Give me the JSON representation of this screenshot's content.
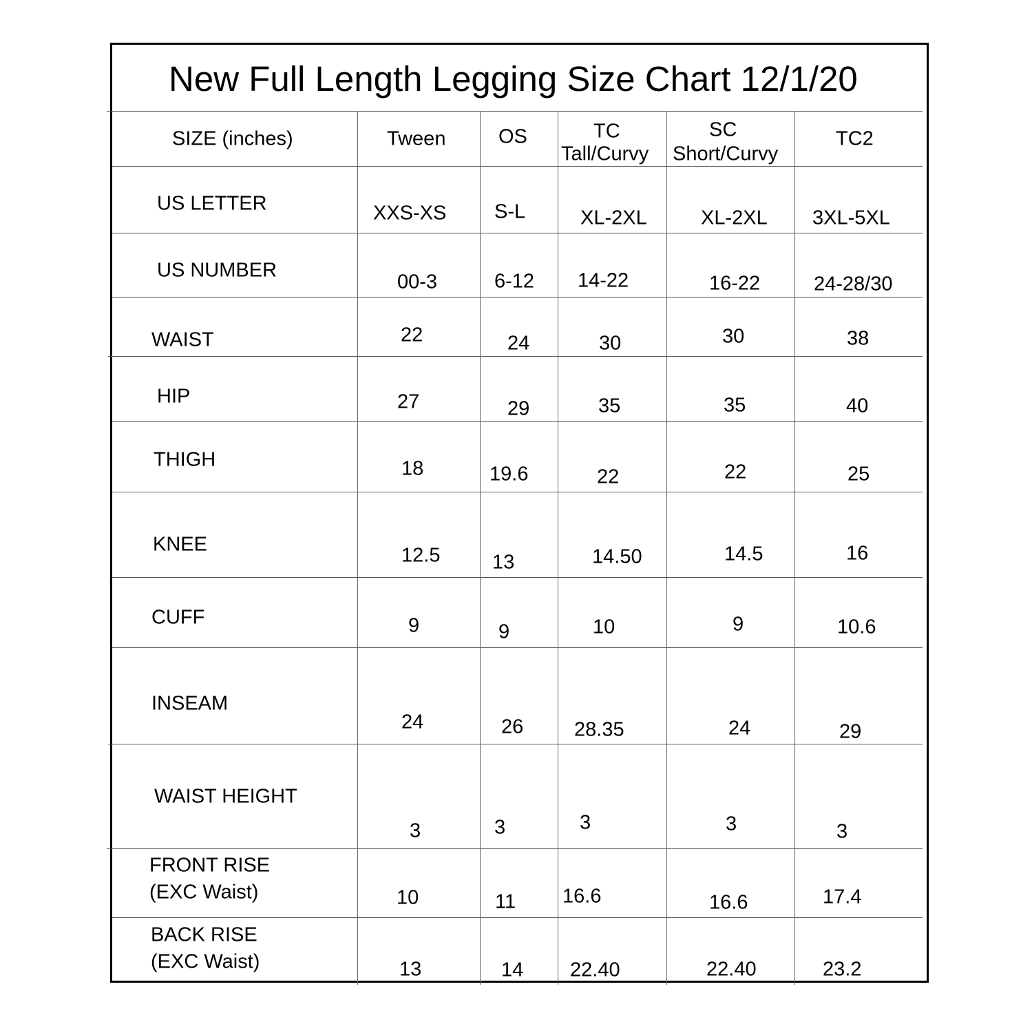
{
  "title": "New Full Length Legging Size Chart 12/1/20",
  "header": {
    "size_label": "SIZE (inches)",
    "columns": [
      {
        "line1": "Tween"
      },
      {
        "line1": "OS"
      },
      {
        "line1": "TC",
        "line2": "Tall/Curvy"
      },
      {
        "line1": "SC",
        "line2": "Short/Curvy"
      },
      {
        "line1": "TC2"
      }
    ]
  },
  "rows": [
    {
      "label": "US LETTER",
      "values": [
        "XXS-XS",
        "S-L",
        "XL-2XL",
        "XL-2XL",
        "3XL-5XL"
      ]
    },
    {
      "label": "US NUMBER",
      "values": [
        "00-3",
        "6-12",
        "14-22",
        "16-22",
        "24-28/30"
      ]
    },
    {
      "label": "WAIST",
      "values": [
        "22",
        "24",
        "30",
        "30",
        "38"
      ]
    },
    {
      "label": "HIP",
      "values": [
        "27",
        "29",
        "35",
        "35",
        "40"
      ]
    },
    {
      "label": "THIGH",
      "values": [
        "18",
        "19.6",
        "22",
        "22",
        "25"
      ]
    },
    {
      "label": "KNEE",
      "values": [
        "12.5",
        "13",
        "14.50",
        "14.5",
        "16"
      ]
    },
    {
      "label": "CUFF",
      "values": [
        "9",
        "9",
        "10",
        "9",
        "10.6"
      ]
    },
    {
      "label": "INSEAM",
      "values": [
        "24",
        "26",
        "28.35",
        "24",
        "29"
      ]
    },
    {
      "label": "WAIST HEIGHT",
      "values": [
        "3",
        "3",
        "3",
        "3",
        "3"
      ]
    },
    {
      "label": "FRONT RISE",
      "label2": "(EXC Waist)",
      "values": [
        "10",
        "11",
        "16.6",
        "16.6",
        "17.4"
      ]
    },
    {
      "label": "BACK RISE",
      "label2": "(EXC Waist)",
      "values": [
        "13",
        "14",
        "22.40",
        "22.40",
        "23.2"
      ]
    }
  ]
}
